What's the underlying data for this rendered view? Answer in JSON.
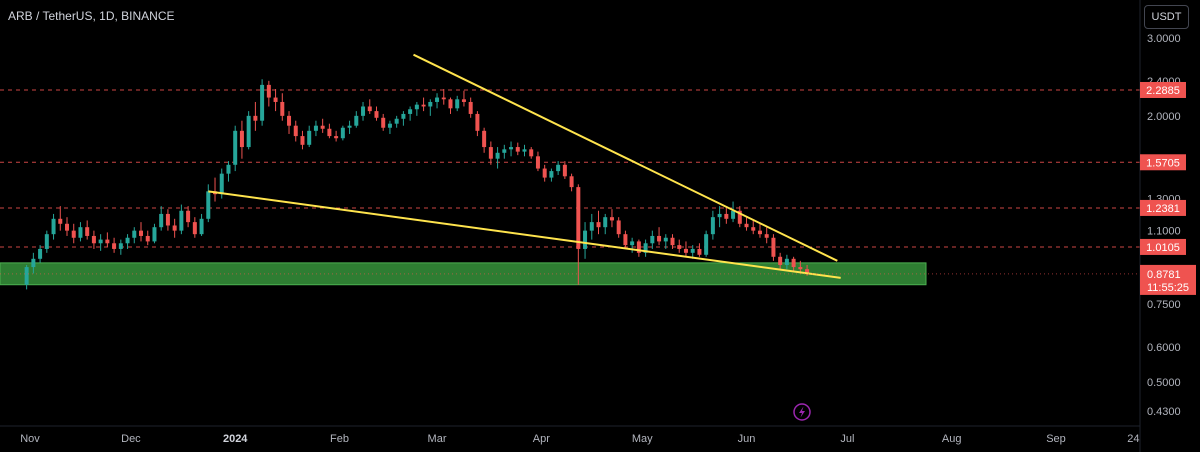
{
  "header": {
    "title": "ARB / TetherUS, 1D, BINANCE",
    "currency_button": "USDT"
  },
  "colors": {
    "background": "#000000",
    "up": "#26a69a",
    "down": "#ef5350",
    "trendline": "#ffe44d",
    "support_zone": "#2e7d32",
    "level_line": "#ef5350"
  },
  "icons": {
    "bottom_center": "lightning-icon"
  },
  "chart_data": {
    "type": "candlestick",
    "title": "ARB / TetherUS, 1D, BINANCE",
    "y_scale": "log",
    "y_ticks": [
      "3.0000",
      "2.4000",
      "2.0000",
      "1.3000",
      "1.1000",
      "0.9000",
      "0.7500",
      "0.6000",
      "0.5000",
      "0.4300"
    ],
    "x_ticks": [
      "Nov",
      "Dec",
      "2024",
      "Feb",
      "Mar",
      "Apr",
      "May",
      "Jun",
      "Jul",
      "Aug",
      "Sep",
      "24"
    ],
    "horizontal_levels": [
      "2.2885",
      "1.5705",
      "1.2381",
      "1.0105"
    ],
    "current_price": "0.8781",
    "countdown": "11:55:25",
    "support_zone": {
      "top": 0.93,
      "bottom": 0.83
    },
    "trendlines": [
      {
        "name": "upper",
        "start": [
          "2024-02-23",
          2.75
        ],
        "end": [
          "2024-06-28",
          0.94
        ]
      },
      {
        "name": "lower",
        "start": [
          "2023-12-24",
          1.35
        ],
        "end": [
          "2024-06-29",
          0.86
        ]
      }
    ],
    "candles": [
      [
        "2023-10-31",
        0.83,
        0.92,
        0.81,
        0.91
      ],
      [
        "2023-11-02",
        0.91,
        0.98,
        0.88,
        0.95
      ],
      [
        "2023-11-04",
        0.95,
        1.02,
        0.93,
        1.0
      ],
      [
        "2023-11-06",
        1.0,
        1.1,
        0.98,
        1.08
      ],
      [
        "2023-11-08",
        1.08,
        1.2,
        1.05,
        1.17
      ],
      [
        "2023-11-10",
        1.17,
        1.25,
        1.1,
        1.14
      ],
      [
        "2023-11-12",
        1.14,
        1.18,
        1.07,
        1.1
      ],
      [
        "2023-11-14",
        1.1,
        1.14,
        1.03,
        1.06
      ],
      [
        "2023-11-16",
        1.06,
        1.15,
        1.04,
        1.12
      ],
      [
        "2023-11-18",
        1.12,
        1.16,
        1.05,
        1.07
      ],
      [
        "2023-11-20",
        1.07,
        1.1,
        1.0,
        1.03
      ],
      [
        "2023-11-22",
        1.03,
        1.08,
        0.99,
        1.05
      ],
      [
        "2023-11-24",
        1.05,
        1.09,
        1.01,
        1.03
      ],
      [
        "2023-11-26",
        1.03,
        1.06,
        0.98,
        1.0
      ],
      [
        "2023-11-28",
        1.0,
        1.05,
        0.97,
        1.03
      ],
      [
        "2023-11-30",
        1.03,
        1.08,
        1.0,
        1.06
      ],
      [
        "2023-12-02",
        1.06,
        1.12,
        1.03,
        1.1
      ],
      [
        "2023-12-04",
        1.1,
        1.15,
        1.04,
        1.07
      ],
      [
        "2023-12-06",
        1.07,
        1.1,
        1.02,
        1.04
      ],
      [
        "2023-12-08",
        1.04,
        1.14,
        1.03,
        1.12
      ],
      [
        "2023-12-10",
        1.12,
        1.25,
        1.1,
        1.2
      ],
      [
        "2023-12-12",
        1.2,
        1.23,
        1.1,
        1.13
      ],
      [
        "2023-12-14",
        1.13,
        1.17,
        1.06,
        1.1
      ],
      [
        "2023-12-16",
        1.1,
        1.26,
        1.08,
        1.22
      ],
      [
        "2023-12-18",
        1.22,
        1.25,
        1.12,
        1.15
      ],
      [
        "2023-12-20",
        1.15,
        1.18,
        1.06,
        1.08
      ],
      [
        "2023-12-22",
        1.08,
        1.2,
        1.07,
        1.17
      ],
      [
        "2023-12-24",
        1.17,
        1.4,
        1.15,
        1.35
      ],
      [
        "2023-12-26",
        1.35,
        1.45,
        1.28,
        1.33
      ],
      [
        "2023-12-28",
        1.33,
        1.52,
        1.3,
        1.48
      ],
      [
        "2023-12-30",
        1.48,
        1.58,
        1.42,
        1.55
      ],
      [
        "2024-01-01",
        1.55,
        1.9,
        1.5,
        1.85
      ],
      [
        "2024-01-03",
        1.85,
        1.95,
        1.6,
        1.7
      ],
      [
        "2024-01-05",
        1.7,
        2.05,
        1.68,
        2.0
      ],
      [
        "2024-01-07",
        2.0,
        2.15,
        1.85,
        1.95
      ],
      [
        "2024-01-09",
        1.95,
        2.42,
        1.9,
        2.35
      ],
      [
        "2024-01-11",
        2.35,
        2.4,
        2.1,
        2.2
      ],
      [
        "2024-01-13",
        2.2,
        2.3,
        2.05,
        2.15
      ],
      [
        "2024-01-15",
        2.15,
        2.25,
        1.95,
        2.0
      ],
      [
        "2024-01-17",
        2.0,
        2.05,
        1.82,
        1.9
      ],
      [
        "2024-01-19",
        1.9,
        1.95,
        1.75,
        1.8
      ],
      [
        "2024-01-21",
        1.8,
        1.85,
        1.68,
        1.72
      ],
      [
        "2024-01-23",
        1.72,
        1.9,
        1.7,
        1.85
      ],
      [
        "2024-01-25",
        1.85,
        1.95,
        1.8,
        1.9
      ],
      [
        "2024-01-27",
        1.9,
        1.97,
        1.83,
        1.87
      ],
      [
        "2024-01-29",
        1.87,
        1.92,
        1.78,
        1.8
      ],
      [
        "2024-01-31",
        1.8,
        1.85,
        1.75,
        1.78
      ],
      [
        "2024-02-02",
        1.78,
        1.9,
        1.76,
        1.88
      ],
      [
        "2024-02-04",
        1.88,
        1.95,
        1.82,
        1.9
      ],
      [
        "2024-02-06",
        1.9,
        2.05,
        1.88,
        2.0
      ],
      [
        "2024-02-08",
        2.0,
        2.15,
        1.95,
        2.1
      ],
      [
        "2024-02-10",
        2.1,
        2.18,
        2.02,
        2.05
      ],
      [
        "2024-02-12",
        2.05,
        2.1,
        1.95,
        1.98
      ],
      [
        "2024-02-14",
        1.98,
        2.02,
        1.85,
        1.88
      ],
      [
        "2024-02-16",
        1.88,
        1.95,
        1.82,
        1.92
      ],
      [
        "2024-02-18",
        1.92,
        2.0,
        1.88,
        1.97
      ],
      [
        "2024-02-20",
        1.97,
        2.05,
        1.9,
        2.02
      ],
      [
        "2024-02-22",
        2.02,
        2.1,
        1.95,
        2.07
      ],
      [
        "2024-02-24",
        2.07,
        2.15,
        2.0,
        2.12
      ],
      [
        "2024-02-26",
        2.12,
        2.2,
        2.05,
        2.1
      ],
      [
        "2024-02-28",
        2.1,
        2.18,
        2.0,
        2.15
      ],
      [
        "2024-03-01",
        2.15,
        2.25,
        2.08,
        2.2
      ],
      [
        "2024-03-03",
        2.2,
        2.3,
        2.12,
        2.18
      ],
      [
        "2024-03-05",
        2.18,
        2.2,
        2.02,
        2.08
      ],
      [
        "2024-03-07",
        2.08,
        2.22,
        2.05,
        2.18
      ],
      [
        "2024-03-09",
        2.18,
        2.28,
        2.1,
        2.15
      ],
      [
        "2024-03-11",
        2.15,
        2.2,
        1.98,
        2.02
      ],
      [
        "2024-03-13",
        2.02,
        2.05,
        1.8,
        1.85
      ],
      [
        "2024-03-15",
        1.85,
        1.88,
        1.65,
        1.7
      ],
      [
        "2024-03-17",
        1.7,
        1.75,
        1.55,
        1.6
      ],
      [
        "2024-03-19",
        1.6,
        1.7,
        1.52,
        1.65
      ],
      [
        "2024-03-21",
        1.65,
        1.72,
        1.6,
        1.68
      ],
      [
        "2024-03-23",
        1.68,
        1.75,
        1.62,
        1.7
      ],
      [
        "2024-03-25",
        1.7,
        1.74,
        1.63,
        1.66
      ],
      [
        "2024-03-27",
        1.66,
        1.72,
        1.62,
        1.68
      ],
      [
        "2024-03-29",
        1.68,
        1.7,
        1.6,
        1.62
      ],
      [
        "2024-03-31",
        1.62,
        1.66,
        1.5,
        1.52
      ],
      [
        "2024-04-02",
        1.52,
        1.55,
        1.42,
        1.45
      ],
      [
        "2024-04-04",
        1.45,
        1.52,
        1.42,
        1.5
      ],
      [
        "2024-04-06",
        1.5,
        1.58,
        1.47,
        1.55
      ],
      [
        "2024-04-08",
        1.55,
        1.58,
        1.44,
        1.46
      ],
      [
        "2024-04-10",
        1.46,
        1.48,
        1.35,
        1.38
      ],
      [
        "2024-04-12",
        1.38,
        1.4,
        0.83,
        1.0
      ],
      [
        "2024-04-14",
        1.0,
        1.15,
        0.95,
        1.1
      ],
      [
        "2024-04-16",
        1.1,
        1.2,
        1.05,
        1.15
      ],
      [
        "2024-04-18",
        1.15,
        1.22,
        1.08,
        1.12
      ],
      [
        "2024-04-20",
        1.12,
        1.2,
        1.08,
        1.18
      ],
      [
        "2024-04-22",
        1.18,
        1.23,
        1.12,
        1.16
      ],
      [
        "2024-04-24",
        1.16,
        1.18,
        1.06,
        1.08
      ],
      [
        "2024-04-26",
        1.08,
        1.1,
        1.0,
        1.02
      ],
      [
        "2024-04-28",
        1.02,
        1.06,
        0.98,
        1.04
      ],
      [
        "2024-04-30",
        1.04,
        1.05,
        0.96,
        0.98
      ],
      [
        "2024-05-02",
        0.98,
        1.05,
        0.96,
        1.03
      ],
      [
        "2024-05-04",
        1.03,
        1.1,
        1.0,
        1.07
      ],
      [
        "2024-05-06",
        1.07,
        1.12,
        1.02,
        1.04
      ],
      [
        "2024-05-08",
        1.04,
        1.08,
        1.0,
        1.06
      ],
      [
        "2024-05-10",
        1.06,
        1.08,
        1.0,
        1.02
      ],
      [
        "2024-05-12",
        1.02,
        1.05,
        0.98,
        1.0
      ],
      [
        "2024-05-14",
        1.0,
        1.04,
        0.96,
        0.98
      ],
      [
        "2024-05-16",
        0.98,
        1.02,
        0.95,
        1.0
      ],
      [
        "2024-05-18",
        1.0,
        1.03,
        0.96,
        0.97
      ],
      [
        "2024-05-20",
        0.97,
        1.1,
        0.96,
        1.08
      ],
      [
        "2024-05-22",
        1.08,
        1.22,
        1.05,
        1.18
      ],
      [
        "2024-05-24",
        1.18,
        1.25,
        1.12,
        1.2
      ],
      [
        "2024-05-26",
        1.2,
        1.24,
        1.14,
        1.17
      ],
      [
        "2024-05-28",
        1.17,
        1.28,
        1.15,
        1.22
      ],
      [
        "2024-05-30",
        1.22,
        1.25,
        1.12,
        1.14
      ],
      [
        "2024-06-01",
        1.14,
        1.18,
        1.1,
        1.12
      ],
      [
        "2024-06-03",
        1.12,
        1.16,
        1.08,
        1.1
      ],
      [
        "2024-06-05",
        1.1,
        1.14,
        1.06,
        1.08
      ],
      [
        "2024-06-07",
        1.08,
        1.12,
        1.03,
        1.06
      ],
      [
        "2024-06-09",
        1.06,
        1.08,
        0.94,
        0.96
      ],
      [
        "2024-06-11",
        0.96,
        0.98,
        0.9,
        0.92
      ],
      [
        "2024-06-13",
        0.92,
        0.97,
        0.9,
        0.95
      ],
      [
        "2024-06-15",
        0.95,
        0.96,
        0.89,
        0.91
      ],
      [
        "2024-06-17",
        0.91,
        0.94,
        0.88,
        0.9
      ],
      [
        "2024-06-19",
        0.9,
        0.92,
        0.87,
        0.8781
      ]
    ]
  }
}
